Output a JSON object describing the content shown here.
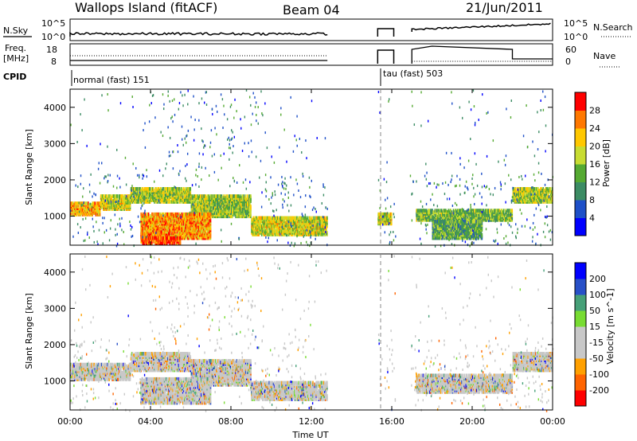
{
  "header": {
    "title": "Wallops Island (fitACF)",
    "beam": "Beam 04",
    "date": "21/Jun/2011"
  },
  "noise_panel": {
    "left_label": "N.Sky",
    "right_label": "N.Search",
    "left_ticks": [
      "10^5",
      "10^0"
    ],
    "right_ticks": [
      "10^5",
      "10^0"
    ]
  },
  "freq_panel": {
    "left_label_1": "Freq.",
    "left_label_2": "[MHz]",
    "right_label": "Nave",
    "left_ticks": [
      "18",
      "8"
    ],
    "right_ticks": [
      "60",
      "0"
    ]
  },
  "cpid": {
    "label": "CPID",
    "entries": [
      {
        "name": "normal (fast) 151",
        "start_hour": 0
      },
      {
        "name": "tau (fast) 503",
        "start_hour": 15.6
      }
    ]
  },
  "time_axis": {
    "label": "Time UT",
    "ticks": [
      "00:00",
      "04:00",
      "08:00",
      "12:00",
      "16:00",
      "20:00",
      "00:00"
    ]
  },
  "colors": {
    "power": [
      "#0000ff",
      "#1e50c8",
      "#3c8c64",
      "#55aa32",
      "#c8dc32",
      "#ffc800",
      "#ff7800",
      "#ff0000"
    ],
    "velocity": [
      "#ff0000",
      "#ff6400",
      "#ffa000",
      "#c8c8c8",
      "#c8c8c8",
      "#78dc32",
      "#46a078",
      "#2850c8",
      "#0000ff"
    ]
  },
  "chart_data": [
    {
      "type": "heatmap",
      "name": "Power",
      "ylabel": "Slant Range [km]",
      "xlabel": "",
      "xlim": [
        0,
        24
      ],
      "ylim": [
        200,
        4500
      ],
      "yticks": [
        1000,
        2000,
        3000,
        4000
      ],
      "colorbar_label": "Power [dB]",
      "colorbar_ticks": [
        "4",
        "8",
        "12",
        "16",
        "20",
        "24",
        "28"
      ],
      "colorbar_range": [
        0,
        32
      ],
      "bands": [
        {
          "h0": 0,
          "h1": 1.5,
          "r0": 1050,
          "r1": 1400,
          "level": 0.75
        },
        {
          "h0": 1.5,
          "h1": 3,
          "r0": 1200,
          "r1": 1600,
          "level": 0.6
        },
        {
          "h0": 3,
          "h1": 6,
          "r0": 1400,
          "r1": 1800,
          "level": 0.55
        },
        {
          "h0": 6,
          "h1": 9,
          "r0": 1000,
          "r1": 1600,
          "level": 0.5
        },
        {
          "h0": 3.5,
          "h1": 7,
          "r0": 400,
          "r1": 1100,
          "level": 0.8
        },
        {
          "h0": 3.5,
          "h1": 5.5,
          "r0": 250,
          "r1": 450,
          "level": 0.95
        },
        {
          "h0": 9,
          "h1": 12.8,
          "r0": 500,
          "r1": 1000,
          "level": 0.6
        },
        {
          "h0": 15.3,
          "h1": 16,
          "r0": 800,
          "r1": 1100,
          "level": 0.6
        },
        {
          "h0": 17.2,
          "h1": 22,
          "r0": 900,
          "r1": 1200,
          "level": 0.45
        },
        {
          "h0": 18,
          "h1": 20.5,
          "r0": 400,
          "r1": 900,
          "level": 0.4
        },
        {
          "h0": 22,
          "h1": 24,
          "r0": 1400,
          "r1": 1800,
          "level": 0.55
        }
      ]
    },
    {
      "type": "heatmap",
      "name": "Velocity",
      "ylabel": "Slant Range [km]",
      "xlabel": "Time UT",
      "xlim": [
        0,
        24
      ],
      "ylim": [
        200,
        4500
      ],
      "yticks": [
        1000,
        2000,
        3000,
        4000
      ],
      "colorbar_label": "Velocity [m s^-1]",
      "colorbar_ticks": [
        "200",
        "100",
        "50",
        "15",
        "-15",
        "-50",
        "-100",
        "-200"
      ],
      "colorbar_range": [
        -250,
        250
      ],
      "bands": [
        {
          "h0": 0,
          "h1": 3,
          "r0": 1050,
          "r1": 1500,
          "level": 0.5
        },
        {
          "h0": 3,
          "h1": 6,
          "r0": 1300,
          "r1": 1800,
          "level": 0.5
        },
        {
          "h0": 6,
          "h1": 9,
          "r0": 900,
          "r1": 1600,
          "level": 0.5
        },
        {
          "h0": 3.5,
          "h1": 7,
          "r0": 400,
          "r1": 1100,
          "level": 0.5
        },
        {
          "h0": 9,
          "h1": 12.8,
          "r0": 500,
          "r1": 1000,
          "level": 0.5
        },
        {
          "h0": 17.2,
          "h1": 22,
          "r0": 700,
          "r1": 1200,
          "level": 0.5
        },
        {
          "h0": 22,
          "h1": 24,
          "r0": 1300,
          "r1": 1800,
          "level": 0.5
        }
      ]
    }
  ]
}
